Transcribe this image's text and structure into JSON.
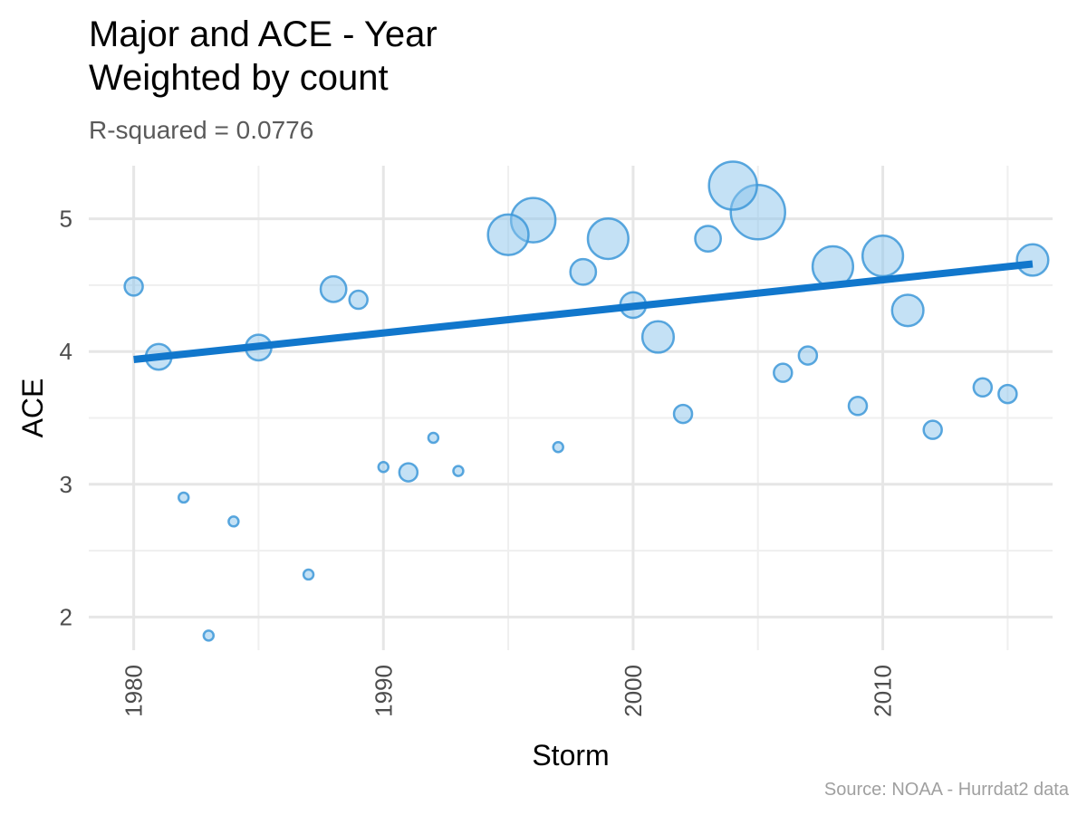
{
  "title_lines": [
    "Major and ACE - Year",
    "Weighted by count"
  ],
  "subtitle": "R-squared =  0.0776",
  "caption": "Source: NOAA - Hurrdat2 data",
  "colors": {
    "point_fill": "#8ac4ec",
    "point_stroke": "#3d98d8",
    "trend_line": "#1177cc",
    "grid_major": "#e6e6e6",
    "grid_minor": "#efefef",
    "tick_text": "#4d4d4d"
  },
  "chart_data": {
    "type": "scatter",
    "title": "Major and ACE - Year\nWeighted by count",
    "subtitle": "R-squared =  0.0776",
    "xlabel": "Storm",
    "ylabel": "ACE",
    "xlim": [
      1978.2,
      2016.8
    ],
    "ylim": [
      1.75,
      5.4
    ],
    "x_ticks": [
      1980,
      1990,
      2000,
      2010
    ],
    "y_ticks": [
      2,
      3,
      4,
      5
    ],
    "x_tick_labels": [
      "1980",
      "1990",
      "2000",
      "2010"
    ],
    "y_tick_labels": [
      "2",
      "3",
      "4",
      "5"
    ],
    "x_tick_label_rotation": -90,
    "grid": true,
    "legend": "none",
    "size_by": "count",
    "points": [
      {
        "x": 1980,
        "y": 4.49,
        "count": 1
      },
      {
        "x": 1981,
        "y": 3.96,
        "count": 2
      },
      {
        "x": 1982,
        "y": 2.9,
        "count": 0.3
      },
      {
        "x": 1983,
        "y": 1.86,
        "count": 0.3
      },
      {
        "x": 1984,
        "y": 2.72,
        "count": 0.3
      },
      {
        "x": 1985,
        "y": 4.03,
        "count": 2
      },
      {
        "x": 1987,
        "y": 2.32,
        "count": 0.3
      },
      {
        "x": 1988,
        "y": 4.47,
        "count": 2
      },
      {
        "x": 1989,
        "y": 4.39,
        "count": 1
      },
      {
        "x": 1990,
        "y": 3.13,
        "count": 0.3
      },
      {
        "x": 1991,
        "y": 3.09,
        "count": 1
      },
      {
        "x": 1992,
        "y": 3.35,
        "count": 0.3
      },
      {
        "x": 1993,
        "y": 3.1,
        "count": 0.3
      },
      {
        "x": 1995,
        "y": 4.88,
        "count": 5
      },
      {
        "x": 1996,
        "y": 4.99,
        "count": 6
      },
      {
        "x": 1997,
        "y": 3.28,
        "count": 0.3
      },
      {
        "x": 1998,
        "y": 4.6,
        "count": 2
      },
      {
        "x": 1999,
        "y": 4.85,
        "count": 5
      },
      {
        "x": 2000,
        "y": 4.35,
        "count": 2
      },
      {
        "x": 2001,
        "y": 4.11,
        "count": 3
      },
      {
        "x": 2002,
        "y": 3.53,
        "count": 1
      },
      {
        "x": 2003,
        "y": 4.85,
        "count": 2
      },
      {
        "x": 2004,
        "y": 5.25,
        "count": 7
      },
      {
        "x": 2005,
        "y": 5.05,
        "count": 9
      },
      {
        "x": 2006,
        "y": 3.84,
        "count": 1
      },
      {
        "x": 2007,
        "y": 3.97,
        "count": 1
      },
      {
        "x": 2008,
        "y": 4.64,
        "count": 5
      },
      {
        "x": 2009,
        "y": 3.59,
        "count": 1
      },
      {
        "x": 2010,
        "y": 4.72,
        "count": 5
      },
      {
        "x": 2011,
        "y": 4.31,
        "count": 3
      },
      {
        "x": 2012,
        "y": 3.41,
        "count": 1
      },
      {
        "x": 2014,
        "y": 3.73,
        "count": 1
      },
      {
        "x": 2015,
        "y": 3.68,
        "count": 1
      },
      {
        "x": 2016,
        "y": 4.69,
        "count": 3
      }
    ],
    "trend_line": {
      "x": [
        1980,
        2016
      ],
      "y": [
        3.94,
        4.66
      ]
    }
  }
}
